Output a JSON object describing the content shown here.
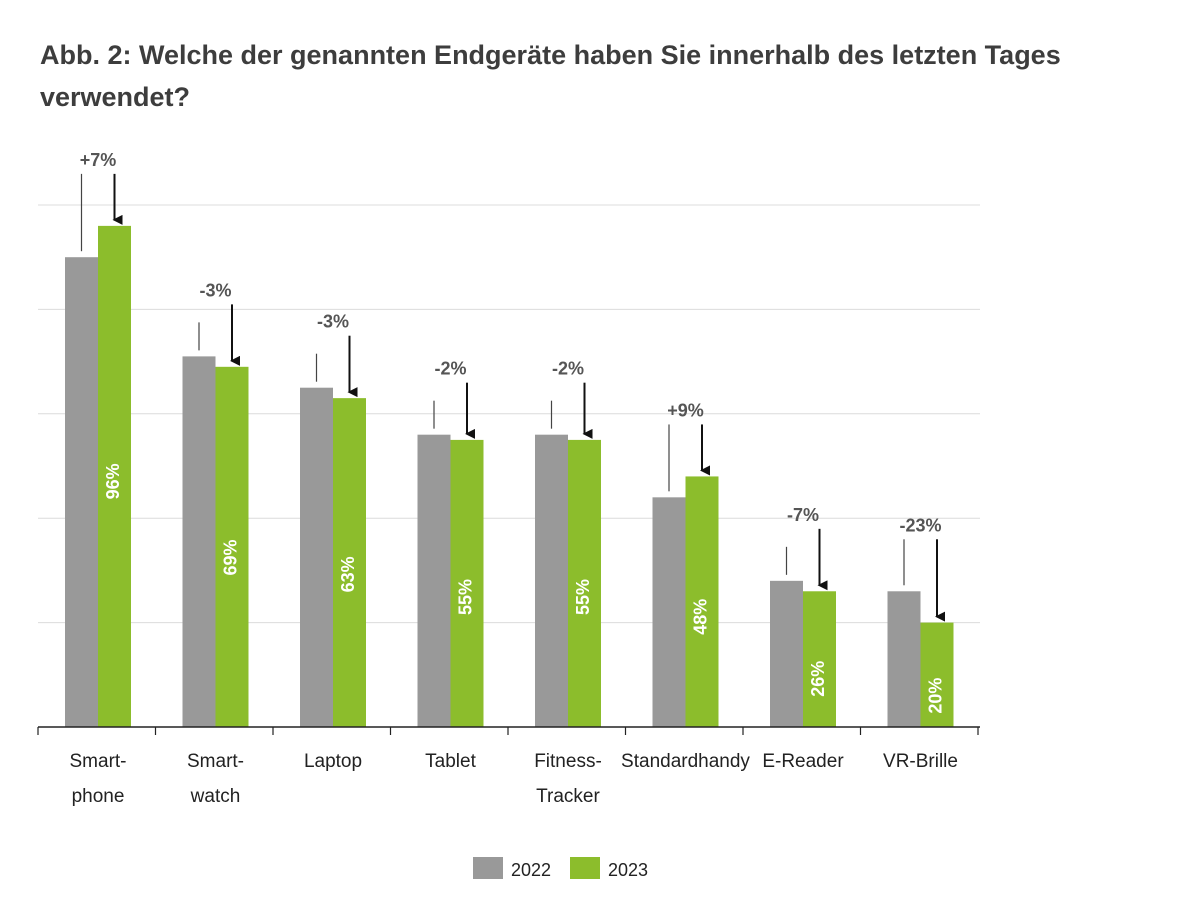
{
  "title": "Abb. 2: Welche der genannten Endgeräte haben Sie innerhalb des letzten Tages verwendet?",
  "chart_data": {
    "type": "bar",
    "categories": [
      "Smartphone",
      "Smartwatch",
      "Laptop",
      "Tablet",
      "Fitness-Tracker",
      "Standardhandy",
      "E-Reader",
      "VR-Brille"
    ],
    "category_labels": [
      [
        "Smart-",
        "phone"
      ],
      [
        "Smart-",
        "watch"
      ],
      [
        "Laptop"
      ],
      [
        "Tablet"
      ],
      [
        "Fitness-",
        "Tracker"
      ],
      [
        "Standardhandy"
      ],
      [
        "E-Reader"
      ],
      [
        "VR-Brille"
      ]
    ],
    "series": [
      {
        "name": "2022",
        "color": "#999999",
        "values": [
          90,
          71,
          65,
          56,
          56,
          44,
          28,
          26
        ]
      },
      {
        "name": "2023",
        "color": "#8cbd2c",
        "values": [
          96,
          69,
          63,
          55,
          55,
          48,
          26,
          20
        ],
        "value_labels": [
          "96%",
          "69%",
          "63%",
          "55%",
          "55%",
          "48%",
          "26%",
          "20%"
        ]
      }
    ],
    "changes": [
      "+7%",
      "-3%",
      "-3%",
      "-2%",
      "-2%",
      "+9%",
      "-7%",
      "-23%"
    ],
    "ylim": [
      0,
      100
    ],
    "gridlines": [
      20,
      40,
      60,
      80,
      100
    ],
    "grid": true,
    "xlabel": "",
    "ylabel": "",
    "legend_position": "bottom-center"
  }
}
